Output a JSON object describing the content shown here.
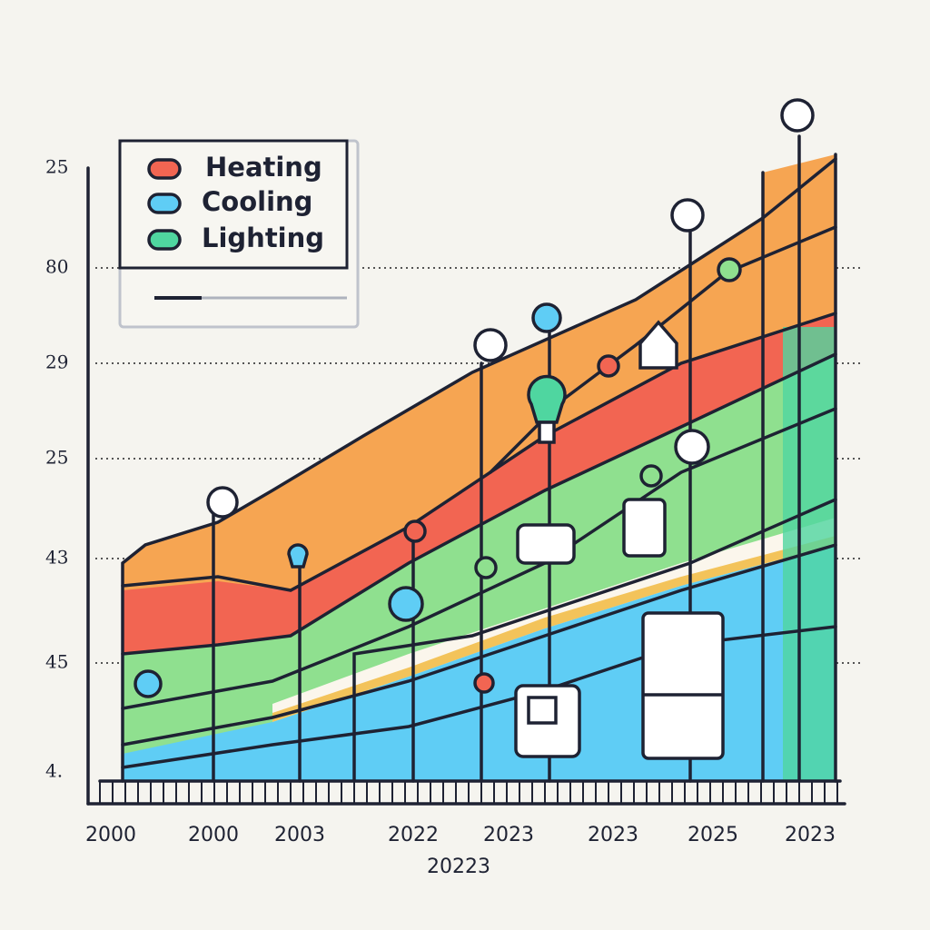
{
  "legend": [
    "Heating",
    "Cooling",
    "Lighting"
  ],
  "y_axis_labels": [
    "25",
    "80",
    "29",
    "25",
    "43",
    "45",
    "4."
  ],
  "x_axis_labels": [
    "2000",
    "2000",
    "2003",
    "2022",
    "2023",
    "2023",
    "2025",
    "2023"
  ],
  "x_axis_footer": "20223"
}
